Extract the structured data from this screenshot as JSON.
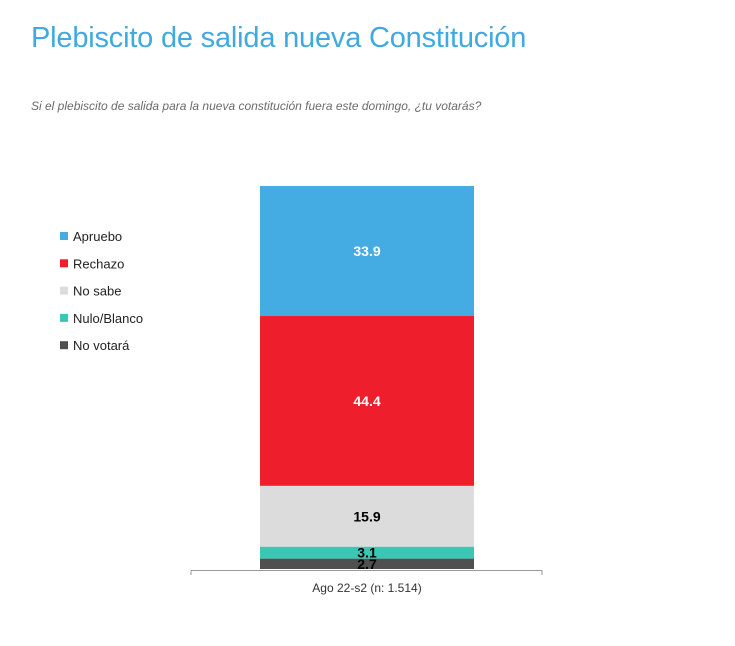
{
  "header": {
    "title": "Plebiscito de salida nueva Constitución",
    "subtitle": "Si el plebiscito de salida para la nueva constitución fuera este domingo, ¿tu votarás?"
  },
  "chart_data": {
    "type": "bar",
    "stacked": true,
    "categories": [
      "Ago 22-s2 (n: 1.514)"
    ],
    "series": [
      {
        "name": "Apruebo",
        "values": [
          33.9
        ],
        "color": "#45ace3",
        "label_color": "#ffffff"
      },
      {
        "name": "Rechazo",
        "values": [
          44.4
        ],
        "color": "#ee1e2d",
        "label_color": "#ffffff"
      },
      {
        "name": "No sabe",
        "values": [
          15.9
        ],
        "color": "#dcdcdc",
        "label_color": "#000000"
      },
      {
        "name": "Nulo/Blanco",
        "values": [
          3.1
        ],
        "color": "#3cc7b4",
        "label_color": "#000000"
      },
      {
        "name": "No votará",
        "values": [
          2.7
        ],
        "color": "#505050",
        "label_color": "#000000"
      }
    ],
    "legend_position": "left",
    "grid": false
  }
}
